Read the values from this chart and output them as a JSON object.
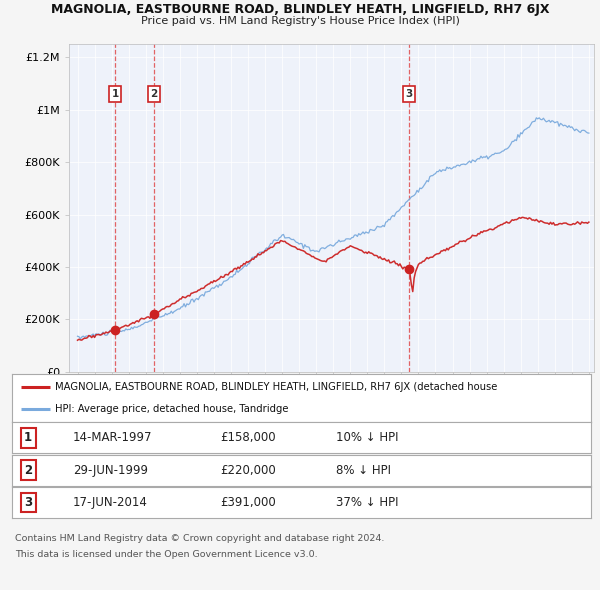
{
  "title": "MAGNOLIA, EASTBOURNE ROAD, BLINDLEY HEATH, LINGFIELD, RH7 6JX",
  "subtitle": "Price paid vs. HM Land Registry's House Price Index (HPI)",
  "legend_line1": "MAGNOLIA, EASTBOURNE ROAD, BLINDLEY HEATH, LINGFIELD, RH7 6JX (detached house",
  "legend_line2": "HPI: Average price, detached house, Tandridge",
  "footer1": "Contains HM Land Registry data © Crown copyright and database right 2024.",
  "footer2": "This data is licensed under the Open Government Licence v3.0.",
  "transactions": [
    {
      "num": 1,
      "date": "14-MAR-1997",
      "price": "£158,000",
      "hpi": "10% ↓ HPI",
      "year": 1997.2
    },
    {
      "num": 2,
      "date": "29-JUN-1999",
      "price": "£220,000",
      "hpi": "8% ↓ HPI",
      "year": 1999.5
    },
    {
      "num": 3,
      "date": "17-JUN-2014",
      "price": "£391,000",
      "hpi": "37% ↓ HPI",
      "year": 2014.45
    }
  ],
  "transaction_prices": [
    158000,
    220000,
    391000
  ],
  "bg_color": "#f5f5f5",
  "plot_bg": "#eef2fa",
  "red_line": "#cc2222",
  "blue_line": "#7aaadd",
  "ylim": [
    0,
    1250000
  ],
  "yticks": [
    0,
    200000,
    400000,
    600000,
    800000,
    1000000,
    1200000
  ],
  "ytick_labels": [
    "£0",
    "£200K",
    "£400K",
    "£600K",
    "£800K",
    "£1M",
    "£1.2M"
  ],
  "xmin": 1995,
  "xmax": 2025
}
